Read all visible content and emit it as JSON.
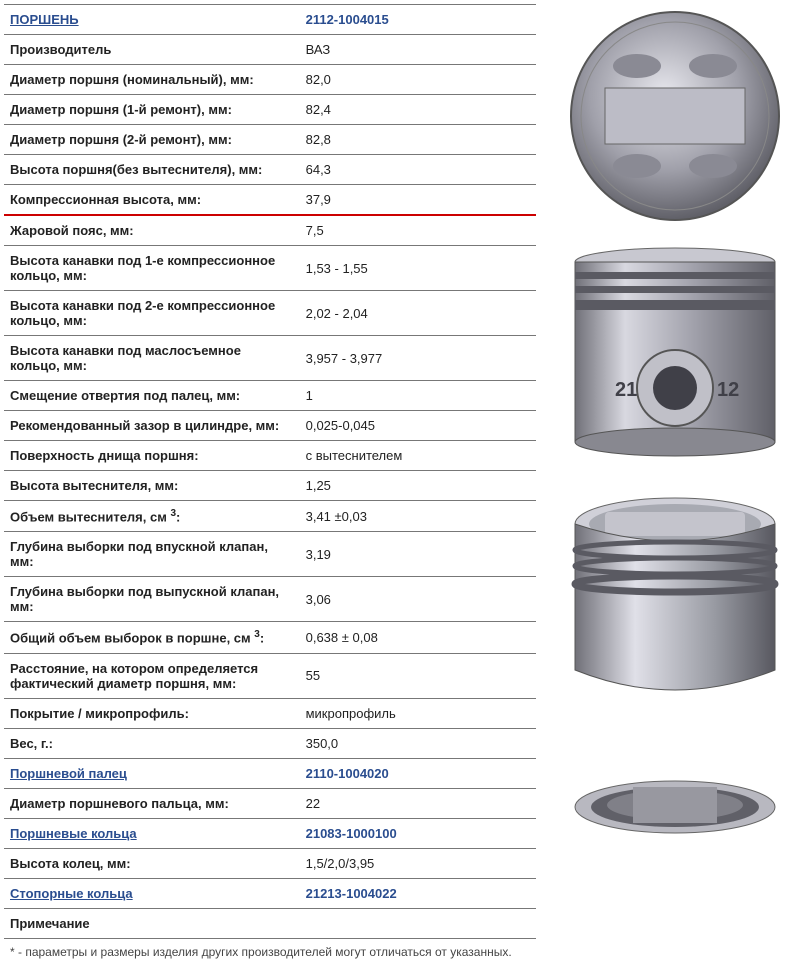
{
  "rows": [
    {
      "label": "ПОРШЕНЬ",
      "value": "2112-1004015",
      "label_link": true,
      "value_link": true
    },
    {
      "label": "Производитель",
      "value": "ВАЗ"
    },
    {
      "label": "Диаметр поршня (номинальный), мм:",
      "value": "82,0"
    },
    {
      "label": "Диаметр поршня (1-й ремонт), мм:",
      "value": "82,4"
    },
    {
      "label": "Диаметр поршня (2-й ремонт), мм:",
      "value": "82,8"
    },
    {
      "label": "Высота поршня(без вытеснителя), мм:",
      "value": "64,3"
    },
    {
      "label": "Компрессионная высота, мм:",
      "value": "37,9",
      "redline": true
    },
    {
      "label": "Жаровой пояс, мм:",
      "value": "7,5"
    },
    {
      "label": "Высота канавки под 1-е компрессионное кольцо, мм:",
      "value": "1,53 - 1,55"
    },
    {
      "label": "Высота канавки под 2-е компрессионное кольцо, мм:",
      "value": "2,02 - 2,04"
    },
    {
      "label": "Высота канавки под маслосъемное кольцо, мм:",
      "value": "3,957 - 3,977"
    },
    {
      "label": "Смещение отвертия под палец, мм:",
      "value": "1"
    },
    {
      "label": "Рекомендованный зазор в цилиндре, мм:",
      "value": "0,025-0,045"
    },
    {
      "label": "Поверхность днища поршня:",
      "value": "с вытеснителем"
    },
    {
      "label": "Высота вытеснителя, мм:",
      "value": "1,25"
    },
    {
      "label": "Объем вытеснителя, см <sup>3</sup>:",
      "value": "3,41 ±0,03",
      "html_label": true
    },
    {
      "label": "Глубина выборки под впускной клапан, мм:",
      "value": "3,19"
    },
    {
      "label": "Глубина выборки под выпускной клапан, мм:",
      "value": "3,06"
    },
    {
      "label": "Общий объем выборок в поршне, см <sup>3</sup>:",
      "value": "0,638 ± 0,08",
      "html_label": true
    },
    {
      "label": "Расстояние, на котором определяется фактический диаметр поршня, мм:",
      "value": "55"
    },
    {
      "label": "Покрытие / микропрофиль:",
      "value": "микропрофиль"
    },
    {
      "label": "Вес, г.:",
      "value": "350,0"
    },
    {
      "label": "Поршневой палец",
      "value": "2110-1004020",
      "label_link": true,
      "value_link": true
    },
    {
      "label": "Диаметр поршневого пальца, мм:",
      "value": "22"
    },
    {
      "label": "Поршневые кольца",
      "value": "21083-1000100",
      "label_link": true,
      "value_link": true
    },
    {
      "label": "Высота колец, мм:",
      "value": "1,5/2,0/3,95"
    },
    {
      "label": "Стопорные кольца",
      "value": "21213-1004022",
      "label_link": true,
      "value_link": true
    },
    {
      "label": "Примечание",
      "value": ""
    }
  ],
  "note": "* - параметры и размеры изделия других производителей могут отличаться от указанных.",
  "piston_svgs": {
    "top_fill": "#a8a8b0",
    "side_fill": "#9a9aa6",
    "ring_fill": "#707078",
    "highlight": "#d8d8e0",
    "shadow": "#5a5a62"
  }
}
